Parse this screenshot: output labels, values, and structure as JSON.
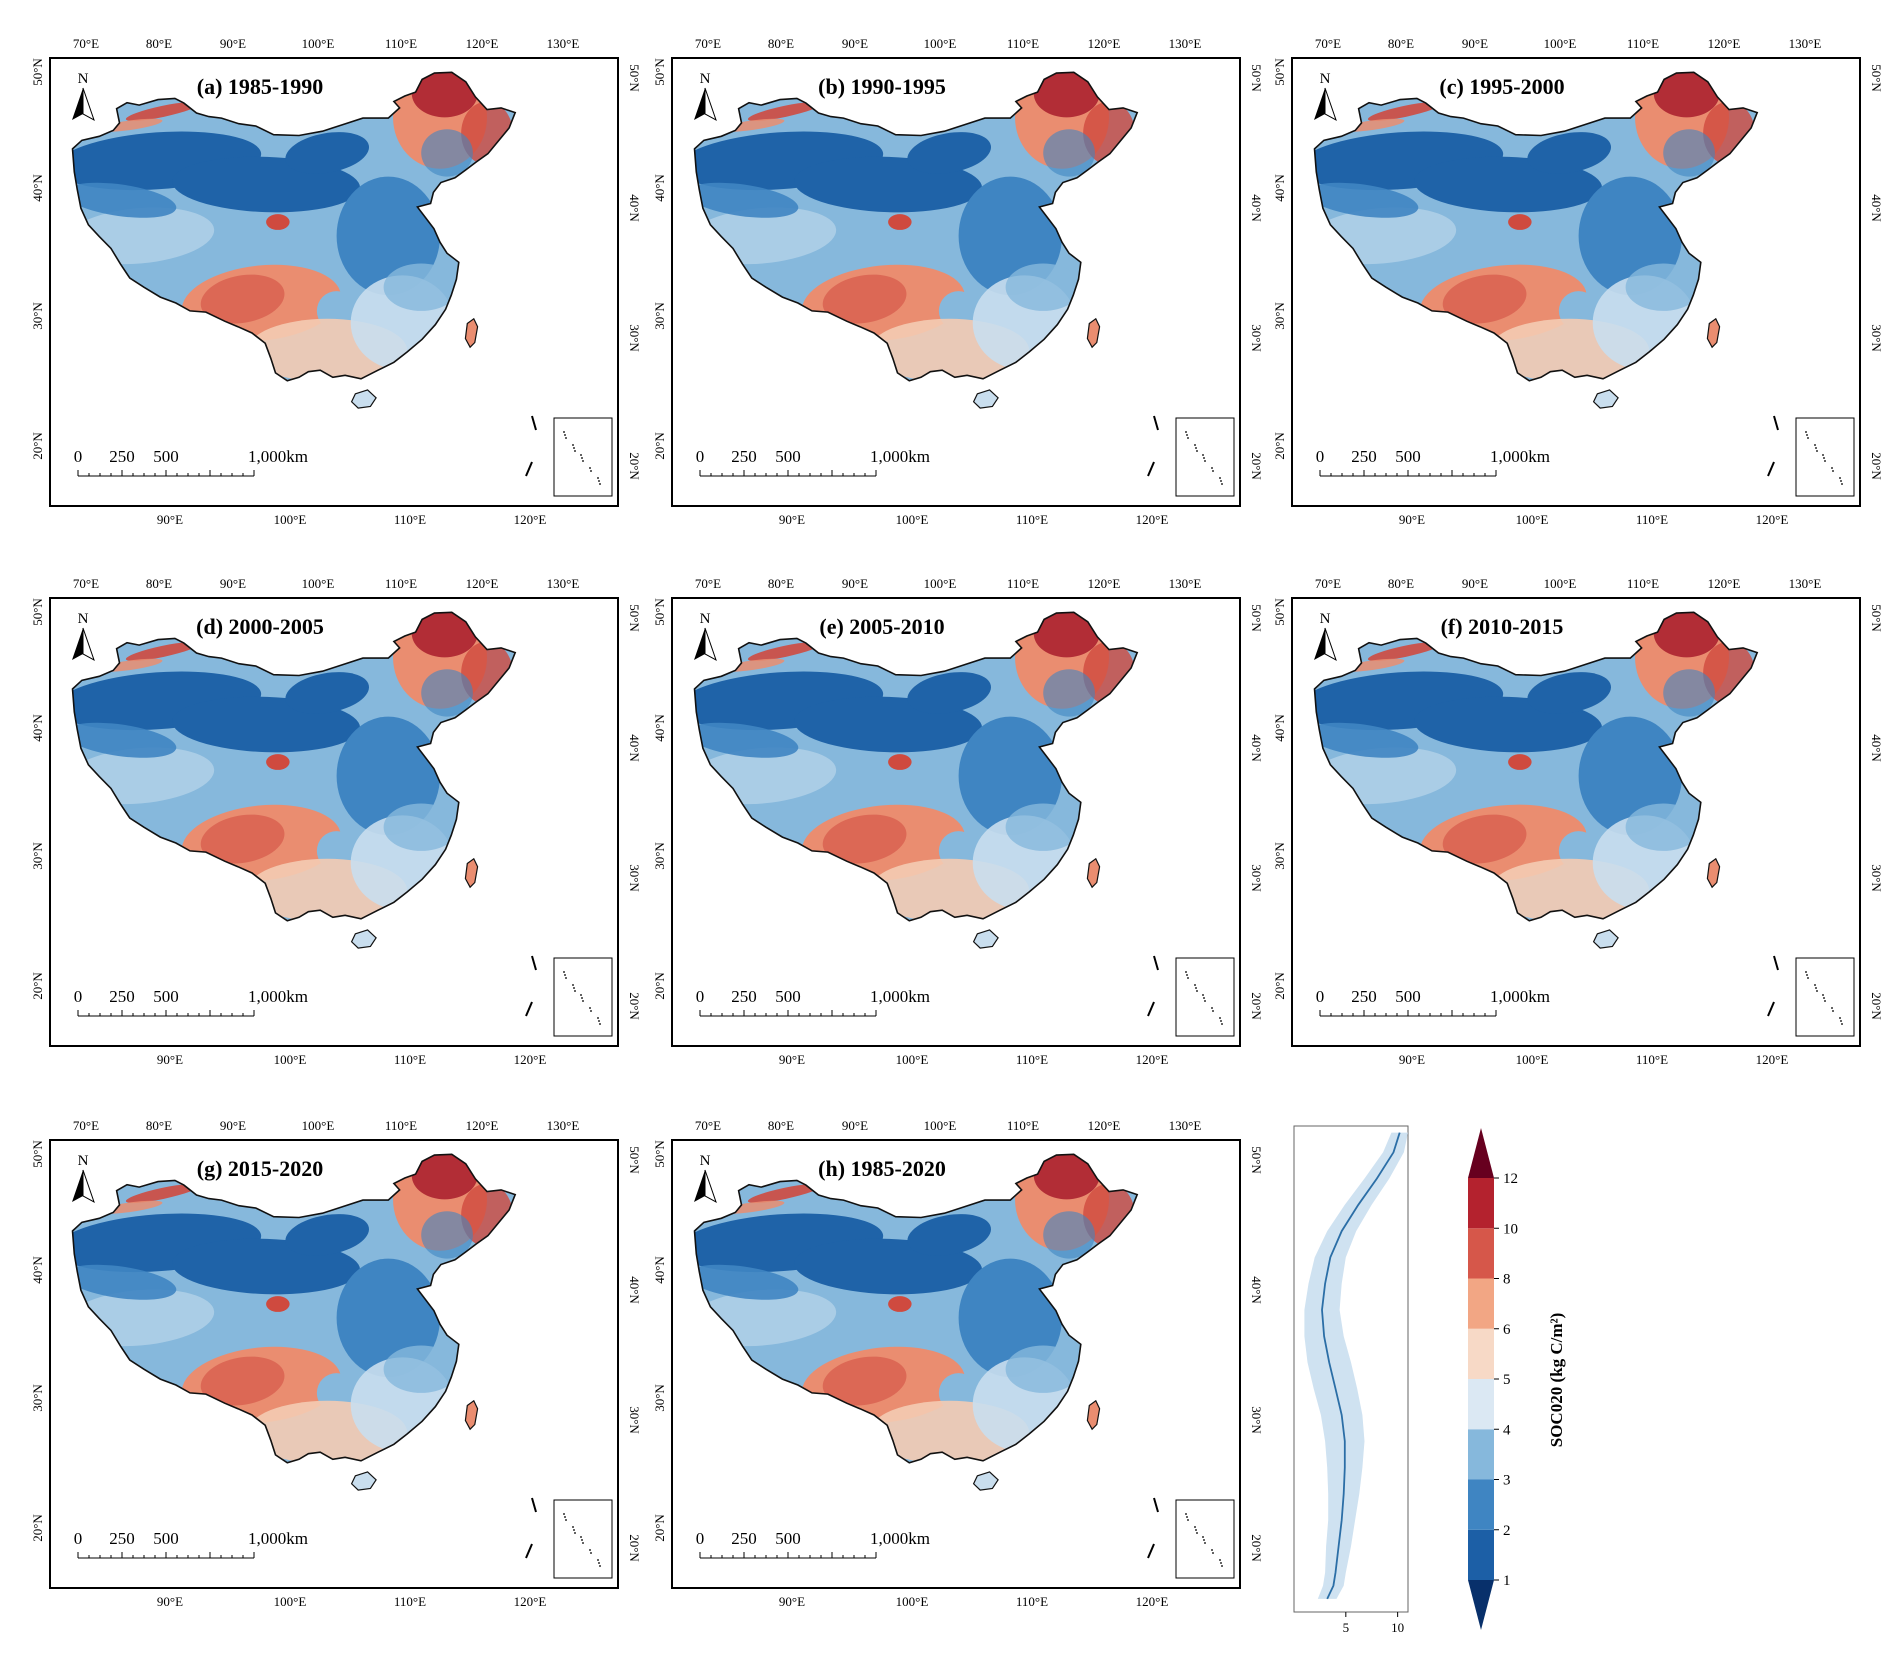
{
  "figure": {
    "panels": [
      {
        "title": "(a) 1985-1990"
      },
      {
        "title": "(b) 1990-1995"
      },
      {
        "title": "(c) 1995-2000"
      },
      {
        "title": "(d) 2000-2005"
      },
      {
        "title": "(e) 2005-2010"
      },
      {
        "title": "(f) 2010-2015"
      },
      {
        "title": "(g) 2015-2020"
      },
      {
        "title": "(h) 1985-2020"
      }
    ],
    "top_lon_labels": [
      "70°E",
      "80°E",
      "90°E",
      "100°E",
      "110°E",
      "120°E",
      "130°E"
    ],
    "bottom_lon_labels": [
      "90°E",
      "100°E",
      "110°E",
      "120°E"
    ],
    "lat_labels": [
      "50°N",
      "40°N",
      "30°N",
      "20°N"
    ],
    "north_arrow_label": "N",
    "scale_bar_labels": [
      "0",
      "250",
      "500",
      "1,000km"
    ],
    "colors": {
      "deep_blue": "#1f63a8",
      "mid_blue": "#3f85c2",
      "light_blue": "#86b8dc",
      "pale_blue": "#c9deee",
      "pale_peach": "#f4cbb3",
      "salmon": "#ea8d70",
      "red": "#cf4a3f",
      "dark_red": "#a81c2b"
    }
  },
  "chart_data": [
    {
      "type": "line",
      "description_of_axes": "vertical latitude profile of SOC020 with shaded uncertainty band",
      "x_ticks": [
        "5",
        "10"
      ],
      "xlim": [
        0,
        11
      ],
      "ylim": [
        17,
        54
      ],
      "series": [
        {
          "points": [
            {
              "lat": 18.0,
              "soc": 3.2
            },
            {
              "lat": 19.0,
              "soc": 3.8
            },
            {
              "lat": 20.0,
              "soc": 4.0
            },
            {
              "lat": 22.0,
              "soc": 4.3
            },
            {
              "lat": 24.0,
              "soc": 4.6
            },
            {
              "lat": 26.0,
              "soc": 4.8
            },
            {
              "lat": 28.0,
              "soc": 4.9
            },
            {
              "lat": 30.0,
              "soc": 4.9
            },
            {
              "lat": 32.0,
              "soc": 4.6
            },
            {
              "lat": 34.0,
              "soc": 4.0
            },
            {
              "lat": 36.0,
              "soc": 3.4
            },
            {
              "lat": 38.0,
              "soc": 2.9
            },
            {
              "lat": 40.0,
              "soc": 2.7
            },
            {
              "lat": 42.0,
              "soc": 3.0
            },
            {
              "lat": 44.0,
              "soc": 3.5
            },
            {
              "lat": 46.0,
              "soc": 4.6
            },
            {
              "lat": 48.0,
              "soc": 6.2
            },
            {
              "lat": 50.0,
              "soc": 8.0
            },
            {
              "lat": 52.0,
              "soc": 9.6
            },
            {
              "lat": 53.5,
              "soc": 10.2
            }
          ],
          "band_halfwidth": [
            0.9,
            1.0,
            1.0,
            1.2,
            1.3,
            1.5,
            1.7,
            1.9,
            2.0,
            2.1,
            2.1,
            1.9,
            1.7,
            1.6,
            1.5,
            1.4,
            1.3,
            1.2,
            1.0,
            0.8
          ]
        }
      ]
    },
    {
      "type": "heatmap",
      "colorbar_label": "SOC020 (kg C/m²)",
      "ticks": [
        "1",
        "2",
        "3",
        "4",
        "5",
        "6",
        "8",
        "10",
        "12"
      ],
      "bins": [
        "#08306b",
        "#1c5fa6",
        "#3f85c2",
        "#86b8dc",
        "#dbe8f3",
        "#f7d9c6",
        "#f2a684",
        "#d6574a",
        "#b4222e",
        "#67001f"
      ]
    }
  ]
}
